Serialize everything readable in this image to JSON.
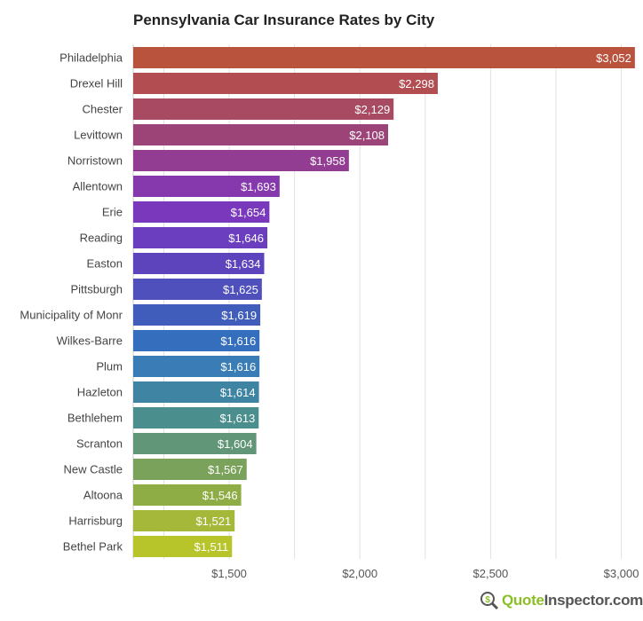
{
  "chart_data": {
    "type": "bar",
    "orientation": "horizontal",
    "title": "Pennsylvania Car Insurance Rates by City",
    "xlabel": "",
    "ylabel": "",
    "categories": [
      "Philadelphia",
      "Drexel Hill",
      "Chester",
      "Levittown",
      "Norristown",
      "Allentown",
      "Erie",
      "Reading",
      "Easton",
      "Pittsburgh",
      "Municipality of Monr",
      "Wilkes-Barre",
      "Plum",
      "Hazleton",
      "Bethlehem",
      "Scranton",
      "New Castle",
      "Altoona",
      "Harrisburg",
      "Bethel Park"
    ],
    "values": [
      3052,
      2298,
      2129,
      2108,
      1958,
      1693,
      1654,
      1646,
      1634,
      1625,
      1619,
      1616,
      1616,
      1614,
      1613,
      1604,
      1567,
      1546,
      1521,
      1511
    ],
    "data_labels": [
      "$3,052",
      "$2,298",
      "$2,129",
      "$2,108",
      "$1,958",
      "$1,693",
      "$1,654",
      "$1,646",
      "$1,634",
      "$1,625",
      "$1,619",
      "$1,616",
      "$1,616",
      "$1,614",
      "$1,613",
      "$1,604",
      "$1,567",
      "$1,546",
      "$1,521",
      "$1,511"
    ],
    "colors": [
      "#b9533d",
      "#b24e52",
      "#a84a62",
      "#9c4478",
      "#923d92",
      "#8539ac",
      "#7a38bd",
      "#6a3ebe",
      "#5d44bd",
      "#5050bd",
      "#405dbb",
      "#356ebd",
      "#3a7cb5",
      "#3f85a3",
      "#4b8e8e",
      "#629678",
      "#7aa25b",
      "#8fad45",
      "#a6b83a",
      "#b8c52a"
    ],
    "xlim": [
      1133,
      3083
    ],
    "xticks": [
      1500,
      2000,
      2500,
      3000
    ],
    "xtick_labels": [
      "$1,500",
      "$2,000",
      "$2,500",
      "$3,000"
    ],
    "grid": true,
    "legend": "none"
  },
  "branding": {
    "logo_part1": "Quote",
    "logo_part2": "Inspector.com",
    "logo_icon": "dollar-magnifier-icon"
  }
}
